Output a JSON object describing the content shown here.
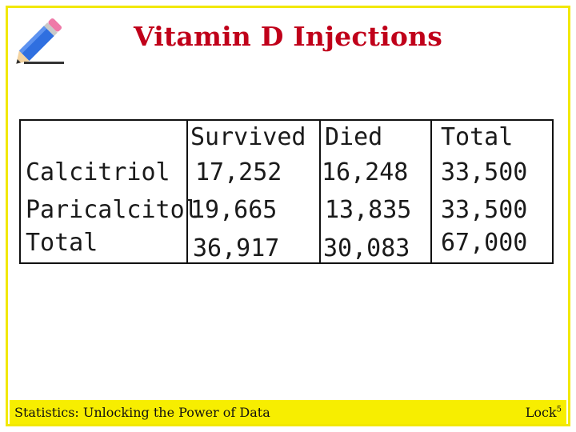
{
  "title": "Vitamin D Injections",
  "table": {
    "headers": [
      "",
      "Survived",
      "Died",
      "Total"
    ],
    "rows": [
      {
        "label": "Calcitriol",
        "survived": "17,252",
        "died": "16,248",
        "total": "33,500"
      },
      {
        "label": "Paricalcitol",
        "survived": "19,665",
        "died": "13,835",
        "total": "33,500"
      },
      {
        "label": "Total",
        "survived": "36,917",
        "died": "30,083",
        "total": "67,000"
      }
    ]
  },
  "footer": {
    "left": "Statistics: Unlocking the Power of Data",
    "right": "Lock",
    "right_sup": "5"
  },
  "icons": {
    "logo": "pencil-icon"
  },
  "colors": {
    "title": "#c0001a",
    "frame": "#f2e800",
    "footer_bar": "#f7ee00"
  }
}
